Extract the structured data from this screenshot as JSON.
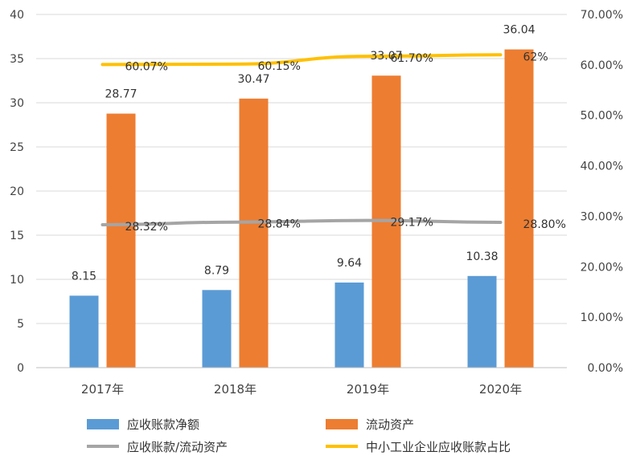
{
  "chart_data": {
    "type": "bar",
    "title": "",
    "categories": [
      "2017年",
      "2018年",
      "2019年",
      "2020年"
    ],
    "y_left": {
      "min": 0,
      "max": 40,
      "step": 5,
      "ticks": [
        "0",
        "5",
        "10",
        "15",
        "20",
        "25",
        "30",
        "35",
        "40"
      ]
    },
    "y_right": {
      "min": 0,
      "max": 70,
      "step": 10,
      "ticks": [
        "0.00%",
        "10.00%",
        "20.00%",
        "30.00%",
        "40.00%",
        "50.00%",
        "60.00%",
        "70.00%"
      ]
    },
    "grid": true,
    "legend_position": "bottom",
    "series": [
      {
        "name": "应收账款净额",
        "type": "bar",
        "axis": "left",
        "color": "#5b9bd5",
        "values": [
          8.15,
          8.79,
          9.64,
          10.38
        ],
        "labels": [
          "8.15",
          "8.79",
          "9.64",
          "10.38"
        ]
      },
      {
        "name": "流动资产",
        "type": "bar",
        "axis": "left",
        "color": "#ed7d31",
        "values": [
          28.77,
          30.47,
          33.07,
          36.04
        ],
        "labels": [
          "28.77",
          "30.47",
          "33.07",
          "36.04"
        ]
      },
      {
        "name": "应收账款/流动资产",
        "type": "line",
        "axis": "right",
        "color": "#a5a5a5",
        "values": [
          28.32,
          28.84,
          29.17,
          28.8
        ],
        "labels": [
          "28.32%",
          "28.84%",
          "29.17%",
          "28.80%"
        ]
      },
      {
        "name": "中小工业企业应收账款占比",
        "type": "line",
        "axis": "right",
        "color": "#ffc000",
        "values": [
          60.07,
          60.15,
          61.7,
          62.0
        ],
        "labels": [
          "60.07%",
          "60.15%",
          "61.70%",
          "62%"
        ]
      }
    ]
  }
}
